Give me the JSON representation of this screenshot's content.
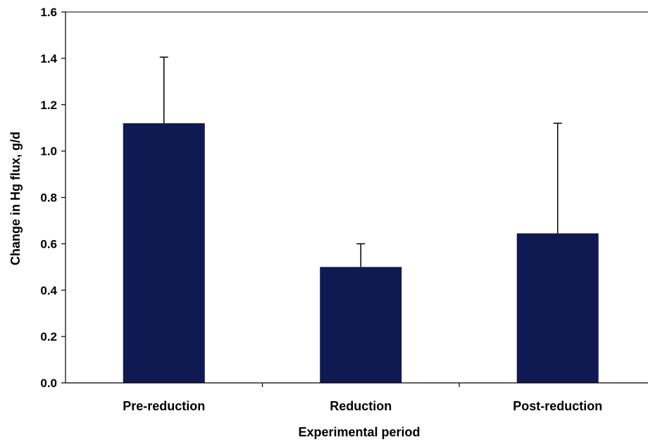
{
  "chart_data": {
    "type": "bar",
    "categories": [
      "Pre-reduction",
      "Reduction",
      "Post-reduction"
    ],
    "values": [
      1.12,
      0.5,
      0.645
    ],
    "error_upper": [
      1.405,
      0.6,
      1.12
    ],
    "title": "",
    "xlabel": "Experimental period",
    "ylabel": "Change in Hg flux, g/d",
    "ylim": [
      0,
      1.6
    ],
    "yticks": [
      "0.0",
      "0.2",
      "0.4",
      "0.6",
      "0.8",
      "1.0",
      "1.2",
      "1.4",
      "1.6"
    ],
    "grid": false,
    "legend": "none",
    "colors": {
      "bar": "#0f1a52",
      "axis": "#000000",
      "error_bar": "#000000"
    }
  }
}
